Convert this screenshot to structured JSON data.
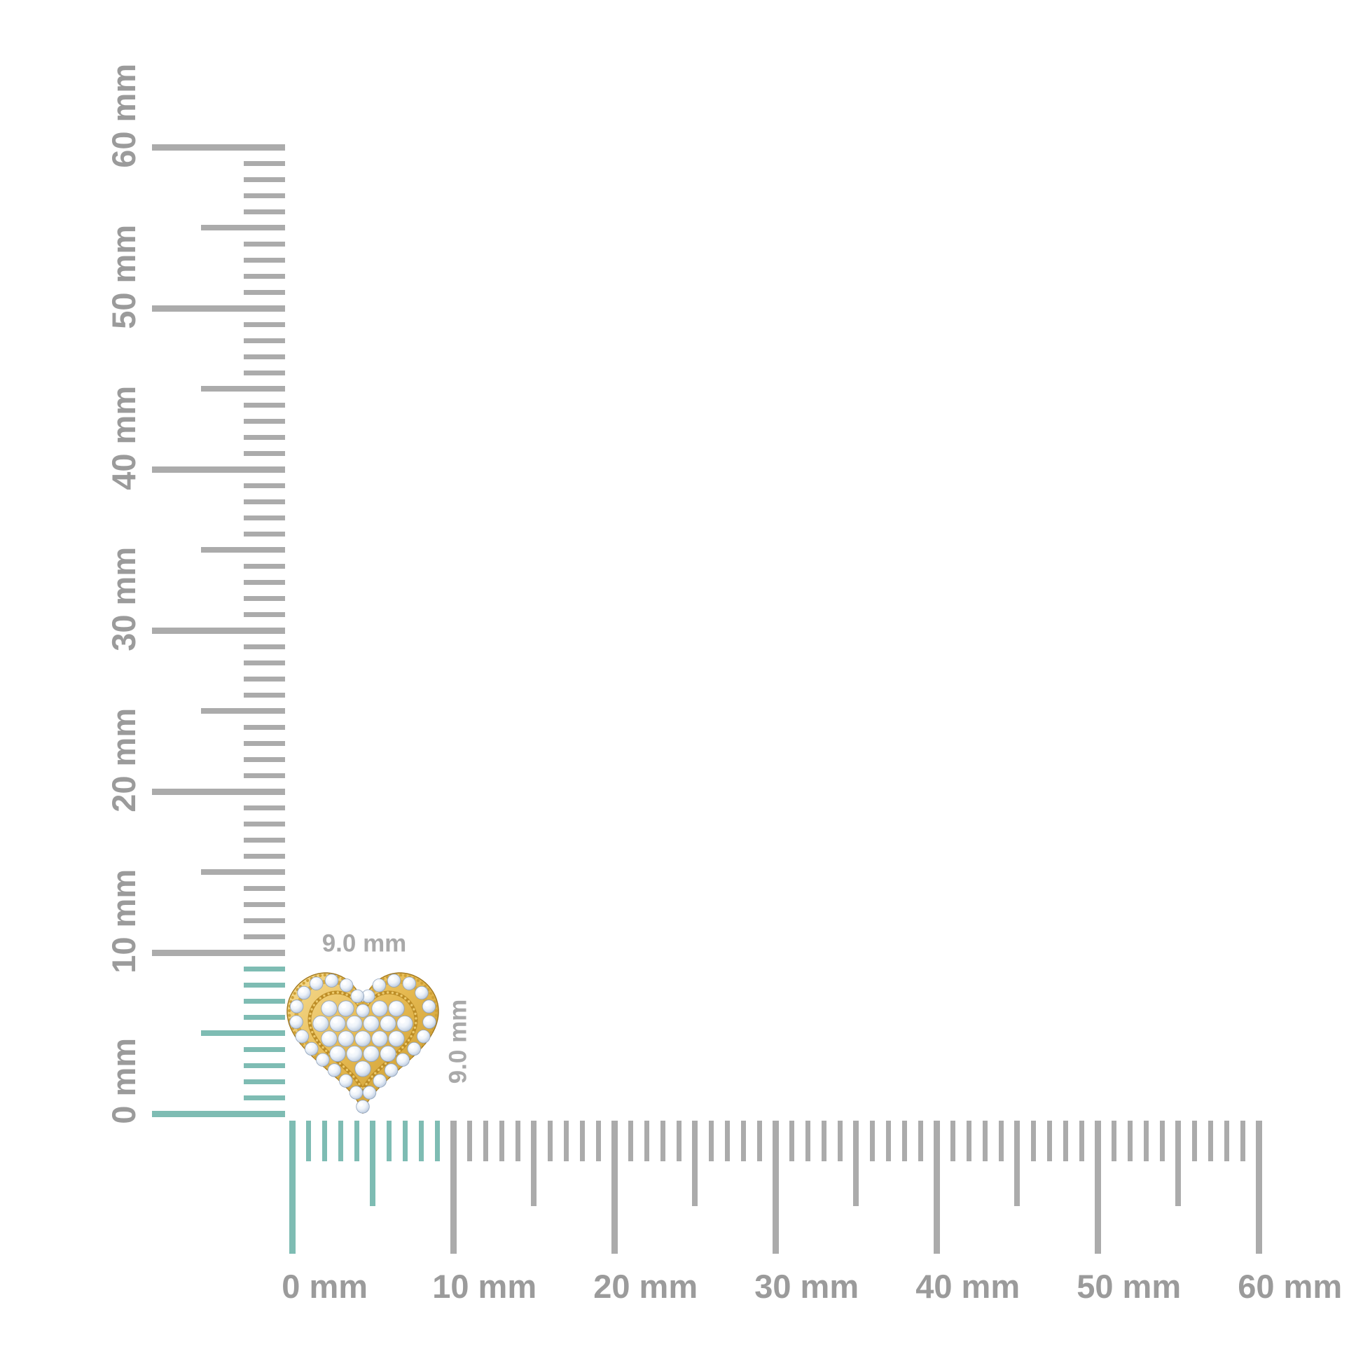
{
  "page": {
    "background": "#ffffff"
  },
  "product": {
    "name": "yellow-gold-pave-diamond-heart-stud",
    "width_mm": 9.0,
    "height_mm": 9.0,
    "gold_color": "#e6ba52",
    "gold_dark": "#bd8d26",
    "gold_light": "#f6dc93",
    "diamond_color": "#eff4fa"
  },
  "annotations": {
    "width_label": "9.0 mm",
    "height_label": "9.0 mm",
    "label_color": "#a9a9a9"
  },
  "rulers": {
    "unit": "mm",
    "range_mm": [
      0,
      60
    ],
    "minor_step_mm": 1,
    "medium_step_mm": 5,
    "major_step_mm": 10,
    "highlight_range_mm": [
      0,
      9
    ],
    "colors": {
      "tick_gray": "#ababab",
      "tick_highlight": "#7ebcb3",
      "label": "#9b9b9b"
    },
    "vertical": {
      "labels": [
        "0 mm",
        "10 mm",
        "20 mm",
        "30 mm",
        "40 mm",
        "50 mm",
        "60 mm"
      ]
    },
    "horizontal": {
      "labels": [
        "0 mm",
        "10 mm",
        "20 mm",
        "30 mm",
        "40 mm",
        "50 mm",
        "60 mm"
      ]
    }
  }
}
